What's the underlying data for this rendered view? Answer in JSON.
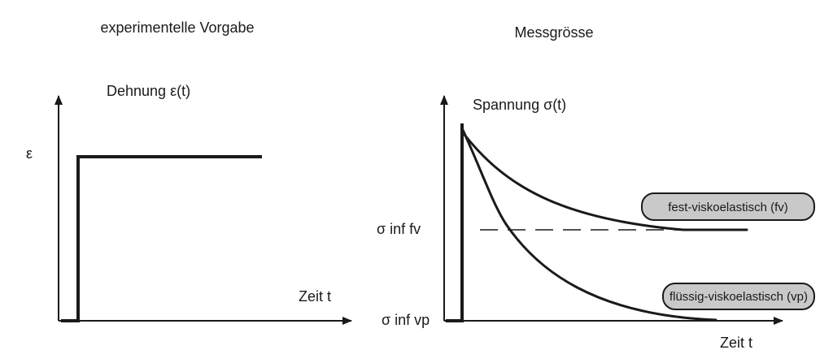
{
  "left_panel": {
    "title": "experimentelle Vorgabe",
    "y_label": "Dehnung ε(t)",
    "level_label": "ε",
    "x_label": "Zeit t"
  },
  "right_panel": {
    "title": "Messgrösse",
    "y_label": "Spannung σ(t)",
    "fv_level_label": "σ inf fv",
    "vp_level_label": "σ inf vp",
    "x_label": "Zeit t",
    "legend_fv": "fest-viskoelastisch (fv)",
    "legend_vp": "flüssig-viskoelastisch (vp)"
  }
}
